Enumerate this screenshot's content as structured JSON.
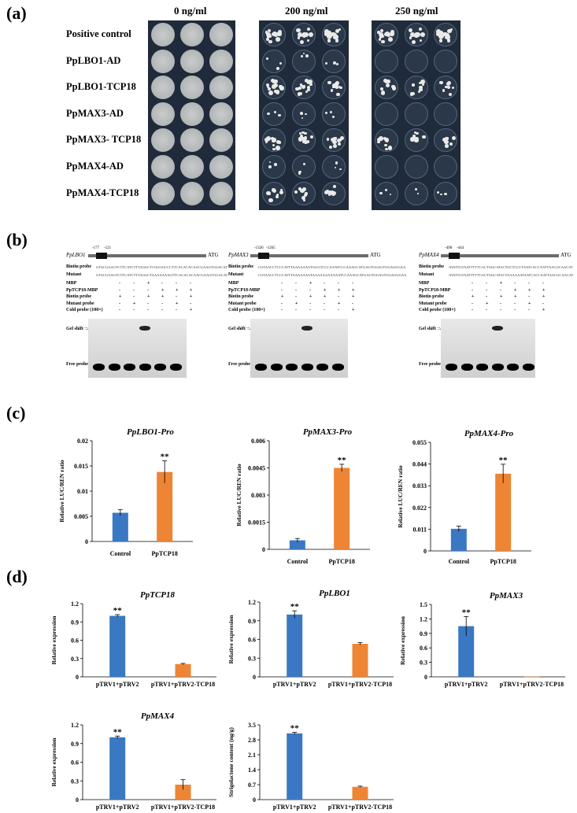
{
  "panels": {
    "a": "(a)",
    "b": "(b)",
    "c": "(c)",
    "d": "(d)"
  },
  "panel_a": {
    "concentrations": [
      "0 ng/ml",
      "200 ng/ml",
      "250 ng/ml"
    ],
    "rows": [
      "Positive control",
      "PpLBO1-AD",
      "PpLBO1-TCP18",
      "PpMAX3-AD",
      "PpMAX3- TCP18",
      "PpMAX4-AD",
      "PpMAX4-TCP18"
    ],
    "growth_200": [
      "heavy",
      "sparse",
      "heavy",
      "sparse",
      "heavy",
      "sparse",
      "medium"
    ],
    "growth_250": [
      "heavy",
      "none",
      "medium",
      "none",
      "medium",
      "none",
      "sparse"
    ]
  },
  "panel_b": {
    "gels": [
      {
        "gene": "PpLBO1",
        "pos1": "-177",
        "pos2": "-121",
        "atg": "ATG",
        "biotin_label": "Biotin probe",
        "biotin_seq": "GTACGAAGTCTTCATCTTTAGGCTCGGGGCCCTTCACACACAACGAAGTGGACAT",
        "mutant_label": "Mutant",
        "mutant_seq": "GTACGAAGTCTTCATCTTTAGGCTAAAAAAAGTTCACACACAACGAAGTGGACAT",
        "row_labels": [
          "MBP",
          "PpTCP18-MBP",
          "Biotin probe",
          "Mutant probe",
          "Cold probe (100×)"
        ],
        "signs": [
          [
            "-",
            "-",
            "+",
            "-",
            "-",
            "-"
          ],
          [
            "-",
            "-",
            "-",
            "+",
            "+",
            "+"
          ],
          [
            "+",
            "-",
            "+",
            "+",
            "-",
            "+"
          ],
          [
            "-",
            "+",
            "-",
            "-",
            "+",
            "-"
          ],
          [
            "-",
            "-",
            "-",
            "-",
            "-",
            "+"
          ]
        ],
        "gel_shift": "Gel shift",
        "free_probe": "Free probe"
      },
      {
        "gene": "PpMAX3",
        "pos1": "-1326",
        "pos2": "-1265",
        "atg": "ATG",
        "biotin_label": "Biotin probe",
        "biotin_seq": "CGTAACCTCCCATTTAAAAAAGTGGGTCCCAAATCCCAAAGCATGAGTGGAGTGGAGGGAA",
        "mutant_label": "Mutant",
        "mutant_seq": "CGTAACCTCCCATTTAAAAAAGTAAAAAAAAAAATCCAAAGCATGAGTGGAGTGGAGGGAA",
        "row_labels": [
          "MBP",
          "PpTCP18-MBP",
          "Biotin probe",
          "Mutant probe",
          "Cold probe (100×)"
        ],
        "signs": [
          [
            "-",
            "-",
            "+",
            "-",
            "-",
            "-"
          ],
          [
            "-",
            "-",
            "-",
            "+",
            "+",
            "+"
          ],
          [
            "+",
            "-",
            "+",
            "+",
            "-",
            "+"
          ],
          [
            "-",
            "+",
            "-",
            "-",
            "+",
            "-"
          ],
          [
            "-",
            "-",
            "-",
            "-",
            "-",
            "+"
          ]
        ],
        "gel_shift": "Gel shift",
        "free_probe": "Free probe"
      },
      {
        "gene": "PpMAX4",
        "pos1": "-498",
        "pos2": "-444",
        "atg": "ATG",
        "biotin_label": "Biotin probe",
        "biotin_seq": "ATATTGTAATTTTTCACTGGCATACTGCTCCCTAATCACCAATTAACGCAACAT",
        "mutant_label": "Mutant",
        "mutant_seq": "ATATTGTAATTTTTCACTGGCATACTAAAAAATAATCACCAATTAACGCAACAT",
        "row_labels": [
          "MBP",
          "PpTCP18-MBP",
          "Biotin probe",
          "Mutant probe",
          "Cold probe (100×)"
        ],
        "signs": [
          [
            "-",
            "-",
            "+",
            "-",
            "-",
            "-"
          ],
          [
            "-",
            "-",
            "-",
            "+",
            "+",
            "+"
          ],
          [
            "+",
            "-",
            "+",
            "+",
            "-",
            "+"
          ],
          [
            "-",
            "+",
            "-",
            "-",
            "+",
            "-"
          ],
          [
            "-",
            "-",
            "-",
            "-",
            "-",
            "+"
          ]
        ],
        "gel_shift": "Gel shift",
        "free_probe": "Free probe"
      }
    ]
  },
  "chart_data": [
    {
      "type": "bar",
      "panel": "c",
      "title": "PpLBO1-Pro",
      "ylabel": "Relative LUC/REN ratio",
      "categories": [
        "Control",
        "PpTCP18"
      ],
      "values": [
        0.0057,
        0.0138
      ],
      "errors": [
        0.0006,
        0.0022
      ],
      "ylim": [
        0,
        0.02
      ],
      "yticks": [
        "0",
        "0.005",
        "0.01",
        "0.015",
        "0.02"
      ],
      "significance": [
        "",
        "**"
      ],
      "colors": [
        "#3a78c3",
        "#ee8535"
      ]
    },
    {
      "type": "bar",
      "panel": "c",
      "title": "PpMAX3-Pro",
      "ylabel": "Relative LUC/REN ratio",
      "categories": [
        "Control",
        "PpTCP18"
      ],
      "values": [
        0.0005,
        0.0045
      ],
      "errors": [
        0.0001,
        0.0002
      ],
      "ylim": [
        0,
        0.006
      ],
      "yticks": [
        "0",
        "0.0015",
        "0.003",
        "0.0045",
        "0.006"
      ],
      "significance": [
        "",
        "**"
      ],
      "colors": [
        "#3a78c3",
        "#ee8535"
      ]
    },
    {
      "type": "bar",
      "panel": "c",
      "title": "PpMAX4-Pro",
      "ylabel": "Relative LUC/REN ratio",
      "categories": [
        "Control",
        "PpTCP18"
      ],
      "values": [
        0.0112,
        0.0391
      ],
      "errors": [
        0.0014,
        0.0048
      ],
      "ylim": [
        0,
        0.055
      ],
      "yticks": [
        "0",
        "0.011",
        "0.022",
        "0.033",
        "0.044",
        "0.055"
      ],
      "significance": [
        "",
        "**"
      ],
      "colors": [
        "#3a78c3",
        "#ee8535"
      ]
    },
    {
      "type": "bar",
      "panel": "d",
      "title": "PpTCP18",
      "ylabel": "Relative expression",
      "categories": [
        "pTRV1+pTRV2",
        "pTRV1+pTRV2-TCP18"
      ],
      "values": [
        1.0,
        0.21
      ],
      "errors": [
        0.02,
        0.01
      ],
      "ylim": [
        0,
        1.2
      ],
      "yticks": [
        "0",
        "0.3",
        "0.6",
        "0.9",
        "1.2"
      ],
      "significance": [
        "**",
        ""
      ],
      "colors": [
        "#3a78c3",
        "#ee8535"
      ]
    },
    {
      "type": "bar",
      "panel": "d",
      "title": "PpLBO1",
      "ylabel": "Relative expression",
      "categories": [
        "pTRV1+pTRV2",
        "pTRV1+pTRV2-TCP18"
      ],
      "values": [
        1.0,
        0.53
      ],
      "errors": [
        0.06,
        0.02
      ],
      "ylim": [
        0,
        1.2
      ],
      "yticks": [
        "0",
        "0.3",
        "0.6",
        "0.9",
        "1.2"
      ],
      "significance": [
        "**",
        ""
      ],
      "colors": [
        "#3a78c3",
        "#ee8535"
      ]
    },
    {
      "type": "bar",
      "panel": "d",
      "title": "PpMAX3",
      "ylabel": "Relative expression",
      "categories": [
        "pTRV1+pTRV2",
        "pTRV1+pTRV2-TCP18"
      ],
      "values": [
        1.05,
        0.005
      ],
      "errors": [
        0.2,
        0.0
      ],
      "ylim": [
        0,
        1.5
      ],
      "yticks": [
        "0",
        "0.3",
        "0.6",
        "0.9",
        "1.2",
        "1.5"
      ],
      "significance": [
        "**",
        ""
      ],
      "colors": [
        "#3a78c3",
        "#ee8535"
      ]
    },
    {
      "type": "bar",
      "panel": "d",
      "title": "PpMAX4",
      "ylabel": "Relative expression",
      "categories": [
        "pTRV1+pTRV2",
        "pTRV1+pTRV2-TCP18"
      ],
      "values": [
        1.0,
        0.24
      ],
      "errors": [
        0.02,
        0.08
      ],
      "ylim": [
        0,
        1.2
      ],
      "yticks": [
        "0",
        "0.3",
        "0.6",
        "0.9",
        "1.2"
      ],
      "significance": [
        "**",
        ""
      ],
      "colors": [
        "#3a78c3",
        "#ee8535"
      ]
    },
    {
      "type": "bar",
      "panel": "d",
      "title": "",
      "ylabel": "Strigolactone content (ng/g)",
      "categories": [
        "pTRV1+pTRV2",
        "pTRV1+pTRV2-TCP18"
      ],
      "values": [
        3.1,
        0.6
      ],
      "errors": [
        0.05,
        0.03
      ],
      "ylim": [
        0,
        3.5
      ],
      "yticks": [
        "0",
        "0.7",
        "1.4",
        "2.1",
        "2.8",
        "3.5"
      ],
      "significance": [
        "**",
        ""
      ],
      "colors": [
        "#3a78c3",
        "#ee8535"
      ]
    }
  ]
}
